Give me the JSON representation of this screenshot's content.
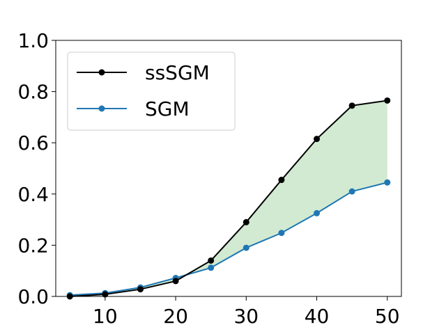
{
  "chart_data": {
    "type": "line",
    "title": "",
    "xlabel": "",
    "ylabel": "",
    "x": [
      5,
      10,
      15,
      20,
      25,
      30,
      35,
      40,
      45,
      50
    ],
    "xlim": [
      3,
      52
    ],
    "ylim": [
      0,
      1.0
    ],
    "xticks": [
      10,
      20,
      30,
      40,
      50
    ],
    "yticks": [
      0.0,
      0.2,
      0.4,
      0.6,
      0.8,
      1.0
    ],
    "xtick_labels": [
      "10",
      "20",
      "30",
      "40",
      "50"
    ],
    "ytick_labels": [
      "0.0",
      "0.2",
      "0.4",
      "0.6",
      "0.8",
      "1.0"
    ],
    "grid": false,
    "legend": "top-left",
    "series": [
      {
        "name": "ssSGM",
        "color": "#000000",
        "marker": "circle",
        "values": [
          0.0,
          0.008,
          0.028,
          0.06,
          0.14,
          0.29,
          0.455,
          0.615,
          0.745,
          0.765
        ]
      },
      {
        "name": "SGM",
        "color": "#1f77b4",
        "marker": "circle",
        "values": [
          0.005,
          0.013,
          0.035,
          0.072,
          0.112,
          0.19,
          0.248,
          0.325,
          0.41,
          0.445
        ]
      }
    ],
    "fill_between": {
      "upper": "ssSGM",
      "lower": "SGM",
      "color": "#2ca02c",
      "alpha": 0.22
    }
  }
}
